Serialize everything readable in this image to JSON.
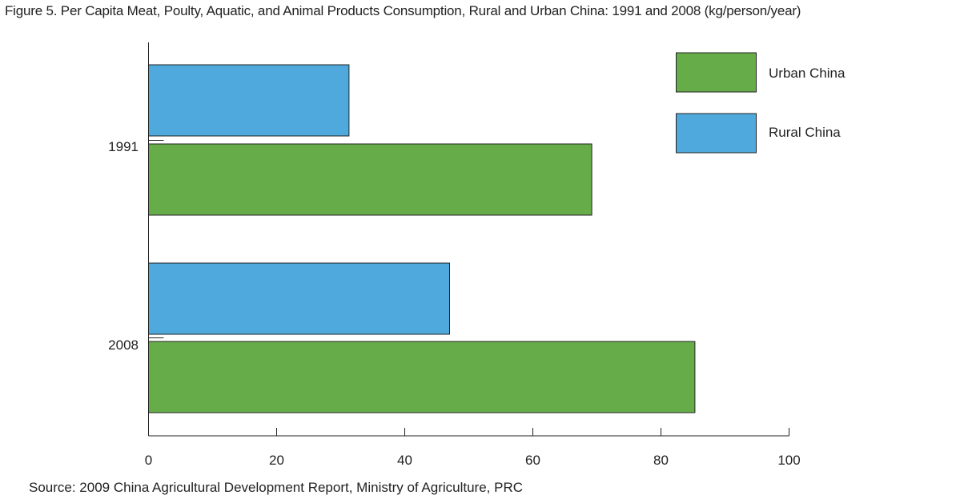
{
  "chart_data": {
    "type": "bar",
    "orientation": "horizontal",
    "title": "Figure 5. Per Capita Meat, Poulty, Aquatic, and Animal Products Consumption, Rural and Urban China: 1991 and 2008 (kg/person/year)",
    "source": "Source: 2009 China Agricultural Development Report, Ministry of Agriculture, PRC",
    "categories": [
      "1991",
      "2008"
    ],
    "series": [
      {
        "name": "Rural China",
        "color": "#4fa9dd",
        "values": [
          31.3,
          47.0
        ]
      },
      {
        "name": "Urban China",
        "color": "#66ad4a",
        "values": [
          69.2,
          85.3
        ]
      }
    ],
    "xlim": [
      0,
      100
    ],
    "xticks": [
      "0",
      "20",
      "40",
      "60",
      "80",
      "100"
    ],
    "legend": {
      "position": "top-right",
      "entries": [
        "Urban China",
        "Rural China"
      ]
    },
    "grid": false
  }
}
